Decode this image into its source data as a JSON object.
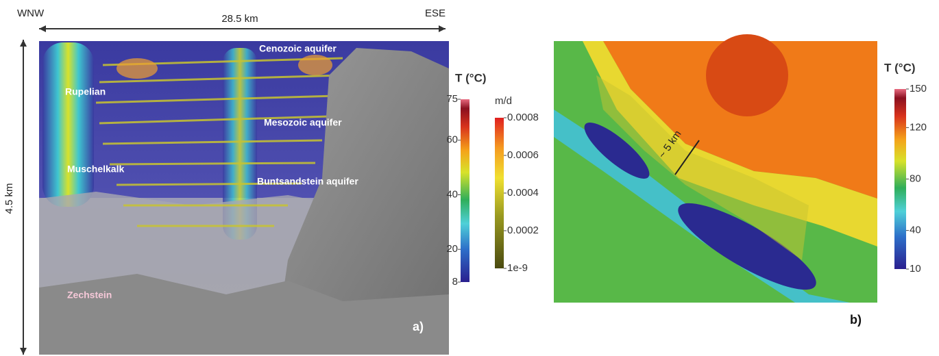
{
  "panel_a": {
    "direction_left": "WNW",
    "direction_right": "ESE",
    "width_label": "28.5 km",
    "depth_label": "4.5 km",
    "units": [
      "Cenozoic aquifer",
      "Rupelian",
      "Mesozoic aquifer",
      "Muschelkalk",
      "Buntsandstein aquifer",
      "Zechstein"
    ],
    "panel_label": "a)",
    "temperature_colorbar": {
      "title": "T (°C)",
      "lim": [
        8,
        75
      ],
      "ticks": [
        75,
        60,
        40,
        20,
        8
      ]
    },
    "flow_colorbar": {
      "title": "m/d",
      "lim": [
        1e-09,
        0.0008
      ],
      "ticks": [
        0.0008,
        0.0006,
        0.0004,
        0.0002,
        {
          "value": 1e-09,
          "label": "1e-9"
        }
      ]
    }
  },
  "panel_b": {
    "scale_label": "~ 5 km",
    "panel_label": "b)",
    "temperature_colorbar": {
      "title": "T (°C)",
      "lim": [
        10,
        150
      ],
      "ticks": [
        150,
        120,
        80,
        40,
        10
      ]
    }
  }
}
